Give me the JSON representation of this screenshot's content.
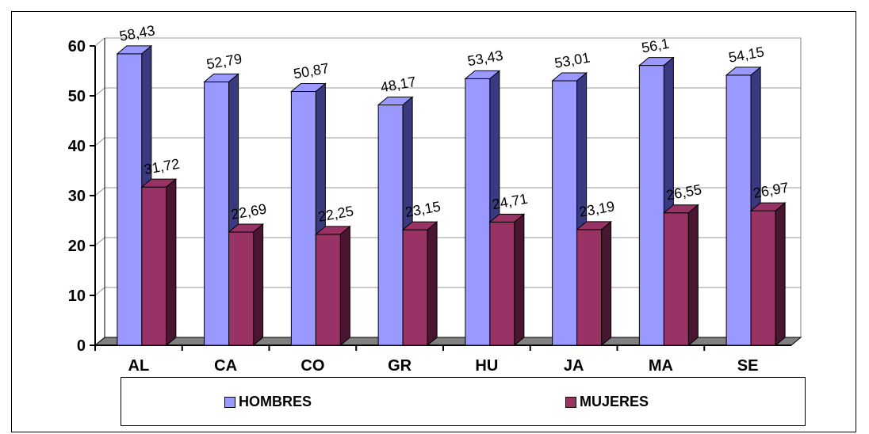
{
  "chart_data": {
    "type": "bar",
    "categories": [
      "AL",
      "CA",
      "CO",
      "GR",
      "HU",
      "JA",
      "MA",
      "SE"
    ],
    "series": [
      {
        "name": "HOMBRES",
        "color": "#9999ff",
        "side_color": "#3a3a80",
        "values": [
          58.43,
          52.79,
          50.87,
          48.17,
          53.43,
          53.01,
          56.1,
          54.15
        ],
        "labels": [
          "58,43",
          "52,79",
          "50,87",
          "48,17",
          "53,43",
          "53,01",
          "56,1",
          "54,15"
        ]
      },
      {
        "name": "MUJERES",
        "color": "#993366",
        "side_color": "#4a1530",
        "values": [
          31.72,
          22.69,
          22.25,
          23.15,
          24.71,
          23.19,
          26.55,
          26.97
        ],
        "labels": [
          "31,72",
          "22,69",
          "22,25",
          "23,15",
          "24,71",
          "23,19",
          "26,55",
          "26,97"
        ]
      }
    ],
    "ylim": [
      0,
      60
    ],
    "yticks": [
      "0",
      "10",
      "20",
      "30",
      "40",
      "50",
      "60"
    ],
    "grid": true,
    "legend_position": "bottom",
    "title": "",
    "xlabel": "",
    "ylabel": ""
  }
}
